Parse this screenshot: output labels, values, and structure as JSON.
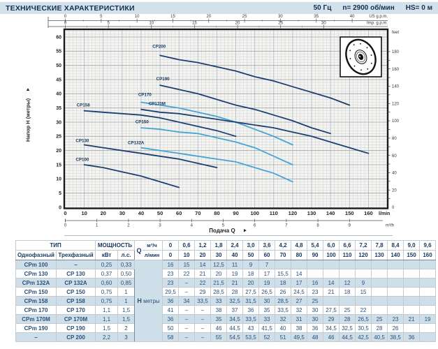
{
  "header": {
    "title": "ТЕХНИЧЕСКИЕ ХАРАКТЕРИСТИКИ",
    "frequency": "50 Гц",
    "speed": "n= 2900 об/мин",
    "suction": "HS= 0 м"
  },
  "chart_data": {
    "type": "line",
    "title": "",
    "xlabel": "Подача Q",
    "ylabel": "Напор H (метры)",
    "x_units": {
      "primary": "l/min",
      "secondary": "m³/h",
      "top1": "US g.p.m.",
      "top2": "Imp. g.p.m."
    },
    "y_units": {
      "primary": "м",
      "secondary": "feet"
    },
    "xlim_lmin": [
      0,
      170
    ],
    "ylim_m": [
      0,
      62
    ],
    "lmin_ticks": [
      0,
      10,
      20,
      30,
      40,
      50,
      60,
      70,
      80,
      90,
      100,
      110,
      120,
      130,
      140,
      150,
      160
    ],
    "m3h_ticks": [
      0,
      1,
      2,
      3,
      4,
      5,
      6,
      7,
      8,
      9
    ],
    "usgpm_ticks": [
      0,
      5,
      10,
      15,
      20,
      25,
      30,
      35,
      40
    ],
    "impgpm_ticks": [
      0,
      5,
      10,
      15,
      20,
      25,
      30
    ],
    "m_ticks": [
      0,
      5,
      10,
      15,
      20,
      25,
      30,
      35,
      40,
      45,
      50,
      55,
      60
    ],
    "feet_ticks": [
      0,
      20,
      40,
      60,
      80,
      100,
      120,
      140,
      160,
      180
    ],
    "grid": "fine-mesh",
    "colors": {
      "dark": "#1d3f6f",
      "light": "#45a5d6",
      "label": "#16365c"
    },
    "series": [
      {
        "name": "CP100",
        "color": "dark",
        "label_at": [
          5.5,
          16.3
        ],
        "points": [
          [
            10,
            15
          ],
          [
            20,
            14
          ],
          [
            30,
            12.5
          ],
          [
            40,
            11
          ],
          [
            50,
            9
          ],
          [
            60,
            7
          ]
        ]
      },
      {
        "name": "CP130",
        "color": "dark",
        "label_at": [
          5.5,
          23.0
        ],
        "points": [
          [
            10,
            22
          ],
          [
            20,
            21
          ],
          [
            30,
            20
          ],
          [
            40,
            19
          ],
          [
            50,
            18
          ],
          [
            60,
            17
          ],
          [
            70,
            15.5
          ],
          [
            80,
            14
          ]
        ]
      },
      {
        "name": "CP132A",
        "color": "light",
        "label_at": [
          33,
          22.3
        ],
        "points": [
          [
            40,
            21
          ],
          [
            50,
            20
          ],
          [
            60,
            19
          ],
          [
            70,
            18
          ],
          [
            80,
            17
          ],
          [
            90,
            16
          ],
          [
            100,
            14
          ],
          [
            110,
            12
          ],
          [
            120,
            9
          ]
        ]
      },
      {
        "name": "CP150",
        "color": "light",
        "label_at": [
          37,
          29.6
        ],
        "points": [
          [
            40,
            28
          ],
          [
            50,
            27.5
          ],
          [
            60,
            26.5
          ],
          [
            70,
            26
          ],
          [
            80,
            24.5
          ],
          [
            90,
            23
          ],
          [
            100,
            21
          ],
          [
            110,
            18
          ],
          [
            120,
            15
          ]
        ]
      },
      {
        "name": "CP158",
        "color": "dark",
        "label_at": [
          6,
          35.5
        ],
        "points": [
          [
            10,
            34
          ],
          [
            20,
            33.5
          ],
          [
            30,
            33
          ],
          [
            40,
            32.5
          ],
          [
            50,
            31.5
          ],
          [
            60,
            30
          ],
          [
            70,
            28.5
          ],
          [
            80,
            27
          ],
          [
            90,
            25
          ]
        ]
      },
      {
        "name": "CP170",
        "color": "light",
        "label_at": [
          38.5,
          39.2
        ],
        "points": [
          [
            40,
            37
          ],
          [
            50,
            36
          ],
          [
            60,
            35
          ],
          [
            70,
            33.5
          ],
          [
            80,
            32
          ],
          [
            90,
            30
          ],
          [
            100,
            27.5
          ],
          [
            110,
            25
          ],
          [
            120,
            22
          ]
        ]
      },
      {
        "name": "CP170M",
        "color": "dark",
        "label_at": [
          44,
          36.0
        ],
        "points": [
          [
            40,
            34.5
          ],
          [
            50,
            33.5
          ],
          [
            60,
            33
          ],
          [
            70,
            32
          ],
          [
            80,
            31
          ],
          [
            90,
            30
          ],
          [
            100,
            29
          ],
          [
            110,
            28
          ],
          [
            120,
            26.5
          ],
          [
            130,
            25
          ],
          [
            140,
            23
          ],
          [
            150,
            21
          ],
          [
            160,
            19
          ]
        ]
      },
      {
        "name": "CP190",
        "color": "dark",
        "label_at": [
          48,
          44.8
        ],
        "points": [
          [
            50,
            43
          ],
          [
            60,
            41.5
          ],
          [
            70,
            40
          ],
          [
            80,
            38
          ],
          [
            90,
            36
          ],
          [
            100,
            34.5
          ],
          [
            110,
            32.5
          ],
          [
            120,
            30.5
          ],
          [
            130,
            28
          ],
          [
            140,
            26
          ]
        ]
      },
      {
        "name": "CP200",
        "color": "dark",
        "label_at": [
          46,
          56.2
        ],
        "points": [
          [
            50,
            53.5
          ],
          [
            60,
            52
          ],
          [
            70,
            51
          ],
          [
            80,
            49.5
          ],
          [
            90,
            48
          ],
          [
            100,
            46
          ],
          [
            110,
            44.5
          ],
          [
            120,
            42.5
          ],
          [
            130,
            40.5
          ],
          [
            140,
            38.5
          ],
          [
            150,
            36
          ]
        ]
      }
    ]
  },
  "table": {
    "headers": {
      "type_group": "ТИП",
      "single": "Однофазный",
      "three": "Трехфазный",
      "power_group": "МОЩНОСТЬ",
      "kw": "кВт",
      "hp": "л.с.",
      "q": "Q",
      "m3h": "м³/ч",
      "lmin": "л/мин",
      "h_bold": "Н",
      "h_rest": " метры"
    },
    "m3h_cols": [
      "0",
      "0,6",
      "1,2",
      "1,8",
      "2,4",
      "3,0",
      "3,6",
      "4,2",
      "4,8",
      "5,4",
      "6,0",
      "6,6",
      "7,2",
      "7,8",
      "8,4",
      "9,0",
      "9,6"
    ],
    "lmin_cols": [
      "0",
      "10",
      "20",
      "30",
      "40",
      "50",
      "60",
      "70",
      "80",
      "90",
      "100",
      "110",
      "120",
      "130",
      "140",
      "150",
      "160"
    ],
    "rows": [
      {
        "single": "CPm 100",
        "three": "–",
        "kw": "0,25",
        "hp": "0,33",
        "h": [
          "16",
          "15",
          "14",
          "12,5",
          "11",
          "9",
          "7",
          "",
          "",
          "",
          "",
          "",
          "",
          "",
          "",
          "",
          ""
        ]
      },
      {
        "single": "CPm 130",
        "three": "CP 130",
        "kw": "0,37",
        "hp": "0,50",
        "h": [
          "23",
          "22",
          "21",
          "20",
          "19",
          "18",
          "17",
          "15,5",
          "14",
          "",
          "",
          "",
          "",
          "",
          "",
          "",
          ""
        ]
      },
      {
        "single": "CPm 132A",
        "three": "CP 132A",
        "kw": "0,60",
        "hp": "0,85",
        "h": [
          "23",
          "–",
          "22",
          "21,5",
          "21",
          "20",
          "19",
          "18",
          "17",
          "16",
          "14",
          "12",
          "9",
          "",
          "",
          "",
          ""
        ]
      },
      {
        "single": "CPm 150",
        "three": "CP 150",
        "kw": "0,75",
        "hp": "1",
        "h": [
          "29,5",
          "–",
          "29",
          "28,5",
          "28",
          "27,5",
          "26,5",
          "26",
          "24,5",
          "23",
          "21",
          "18",
          "15",
          "",
          "",
          "",
          ""
        ]
      },
      {
        "single": "CPm 158",
        "three": "CP 158",
        "kw": "0,75",
        "hp": "1",
        "h": [
          "36",
          "34",
          "33,5",
          "33",
          "32,5",
          "31,5",
          "30",
          "28,5",
          "27",
          "25",
          "",
          "",
          "",
          "",
          "",
          "",
          ""
        ]
      },
      {
        "single": "CPm 170",
        "three": "CP 170",
        "kw": "1,1",
        "hp": "1,5",
        "h": [
          "41",
          "–",
          "–",
          "38",
          "37",
          "36",
          "35",
          "33,5",
          "32",
          "30",
          "27,5",
          "25",
          "22",
          "",
          "",
          "",
          ""
        ]
      },
      {
        "single": "CPm 170M",
        "three": "CP 170M",
        "kw": "1,1",
        "hp": "1,5",
        "h": [
          "36",
          "–",
          "–",
          "35",
          "34,5",
          "33,5",
          "33",
          "32",
          "31",
          "30",
          "29",
          "28",
          "26,5",
          "25",
          "23",
          "21",
          "19"
        ]
      },
      {
        "single": "CPm 190",
        "three": "CP 190",
        "kw": "1,5",
        "hp": "2",
        "h": [
          "50",
          "–",
          "–",
          "46",
          "44,5",
          "43",
          "41,5",
          "40",
          "38",
          "36",
          "34,5",
          "32,5",
          "30,5",
          "28",
          "26",
          "",
          ""
        ]
      },
      {
        "single": "–",
        "three": "CP 200",
        "kw": "2,2",
        "hp": "3",
        "h": [
          "58",
          "–",
          "–",
          "55",
          "54,5",
          "53,5",
          "52",
          "51",
          "49,5",
          "48",
          "46",
          "44,5",
          "42,5",
          "40,5",
          "38,5",
          "36",
          ""
        ]
      }
    ]
  }
}
